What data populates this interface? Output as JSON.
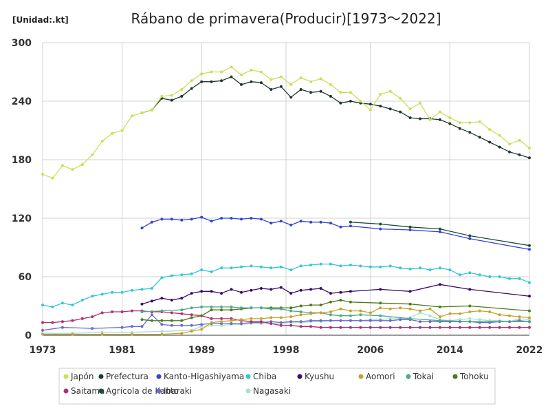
{
  "chart_data": {
    "type": "line",
    "title": "Rábano de primavera(Producir)[1973～2022]",
    "unit_label": "[Unidad:.kt]",
    "xlim": [
      1973,
      2022
    ],
    "ylim": [
      0,
      300
    ],
    "x_ticks": [
      "1973",
      "1981",
      "1989",
      "1998",
      "2006",
      "2014",
      "2022"
    ],
    "x_tick_values": [
      1973,
      1981,
      1989,
      1997.5,
      2006,
      2014,
      2022
    ],
    "y_ticks": [
      0,
      60,
      120,
      180,
      240,
      300
    ],
    "grid": true,
    "legend_position": "bottom",
    "series": [
      {
        "name": "Japón",
        "color": "#c8e05a",
        "x": [
          1973,
          1974,
          1975,
          1976,
          1977,
          1978,
          1979,
          1980,
          1981,
          1982,
          1983,
          1984,
          1985,
          1986,
          1987,
          1988,
          1989,
          1990,
          1991,
          1992,
          1993,
          1994,
          1995,
          1996,
          1997,
          1998,
          1999,
          2000,
          2001,
          2002,
          2003,
          2004,
          2005,
          2006,
          2007,
          2008,
          2009,
          2010,
          2011,
          2012,
          2013,
          2014,
          2015,
          2016,
          2017,
          2018,
          2019,
          2020,
          2021,
          2022
        ],
        "y": [
          165,
          161,
          174,
          170,
          175,
          185,
          199,
          207,
          210,
          225,
          228,
          231,
          245,
          246,
          252,
          261,
          268,
          270,
          270,
          275,
          267,
          272,
          270,
          262,
          265,
          257,
          264,
          260,
          263,
          257,
          249,
          249,
          240,
          231,
          247,
          250,
          243,
          232,
          238,
          221,
          229,
          223,
          218,
          218,
          219,
          211,
          205,
          196,
          200,
          192
        ]
      },
      {
        "name": "Prefectura",
        "color": "#1e3a2e",
        "x": [
          1983,
          1984,
          1985,
          1986,
          1987,
          1988,
          1989,
          1990,
          1991,
          1992,
          1993,
          1994,
          1995,
          1996,
          1997,
          1998,
          1999,
          2000,
          2001,
          2002,
          2003,
          2004,
          2005,
          2006,
          2007,
          2008,
          2009,
          2010,
          2011,
          2012,
          2013,
          2014,
          2015,
          2016,
          2017,
          2018,
          2019,
          2020,
          2021,
          2022
        ],
        "y": [
          228,
          231,
          243,
          241,
          245,
          253,
          260,
          260,
          261,
          265,
          257,
          260,
          259,
          252,
          255,
          244,
          252,
          249,
          250,
          245,
          238,
          240,
          238,
          237,
          235,
          232,
          229,
          223,
          222,
          222,
          221,
          217,
          212,
          208,
          203,
          198,
          193,
          188,
          185,
          182
        ]
      },
      {
        "name": "Kanto-Higashiyama",
        "color": "#3344cc",
        "x": [
          1983,
          1984,
          1985,
          1986,
          1987,
          1988,
          1989,
          1990,
          1991,
          1992,
          1993,
          1994,
          1995,
          1996,
          1997,
          1998,
          1999,
          2000,
          2001,
          2002,
          2003,
          2004,
          2007,
          2010,
          2013,
          2016,
          2022
        ],
        "y": [
          110,
          116,
          119,
          119,
          118,
          119,
          121,
          117,
          120,
          120,
          119,
          120,
          119,
          115,
          117,
          113,
          117,
          116,
          116,
          115,
          111,
          112,
          109,
          108,
          106,
          99,
          88
        ]
      },
      {
        "name": "Chiba",
        "color": "#33c7d6",
        "x": [
          1973,
          1974,
          1975,
          1976,
          1977,
          1978,
          1979,
          1980,
          1981,
          1982,
          1983,
          1984,
          1985,
          1986,
          1987,
          1988,
          1989,
          1990,
          1991,
          1992,
          1993,
          1994,
          1995,
          1996,
          1997,
          1998,
          1999,
          2000,
          2001,
          2002,
          2003,
          2004,
          2005,
          2006,
          2007,
          2008,
          2009,
          2010,
          2011,
          2012,
          2013,
          2014,
          2015,
          2016,
          2017,
          2018,
          2019,
          2020,
          2021,
          2022
        ],
        "y": [
          31,
          29,
          33,
          31,
          36,
          40,
          42,
          44,
          44,
          46,
          47,
          48,
          59,
          61,
          62,
          63,
          67,
          65,
          69,
          69,
          70,
          71,
          70,
          69,
          70,
          67,
          71,
          72,
          73,
          73,
          71,
          72,
          71,
          70,
          70,
          71,
          69,
          68,
          69,
          67,
          69,
          67,
          62,
          64,
          62,
          60,
          60,
          58,
          58,
          54
        ]
      },
      {
        "name": "Kyushu",
        "color": "#3a0a6a",
        "x": [
          1983,
          1984,
          1985,
          1986,
          1987,
          1988,
          1989,
          1990,
          1991,
          1992,
          1993,
          1994,
          1995,
          1996,
          1997,
          1998,
          1999,
          2000,
          2001,
          2002,
          2003,
          2004,
          2007,
          2010,
          2013,
          2016,
          2022
        ],
        "y": [
          32,
          35,
          38,
          36,
          38,
          43,
          45,
          45,
          43,
          47,
          44,
          46,
          48,
          47,
          49,
          43,
          46,
          47,
          48,
          43,
          44,
          45,
          47,
          45,
          52,
          47,
          40
        ]
      },
      {
        "name": "Aomori",
        "color": "#c9a227",
        "x": [
          1973,
          1976,
          1979,
          1982,
          1985,
          1987,
          1988,
          1989,
          1990,
          1991,
          1992,
          1993,
          1994,
          1995,
          1996,
          1997,
          1998,
          1999,
          2000,
          2001,
          2002,
          2003,
          2004,
          2005,
          2006,
          2007,
          2008,
          2009,
          2010,
          2011,
          2012,
          2013,
          2014,
          2015,
          2016,
          2017,
          2018,
          2019,
          2020,
          2021,
          2022
        ],
        "y": [
          1,
          1,
          1,
          1,
          1,
          2,
          4,
          6,
          13,
          14,
          15,
          16,
          17,
          17,
          18,
          18,
          19,
          21,
          22,
          23,
          24,
          27,
          25,
          25,
          23,
          28,
          27,
          28,
          27,
          25,
          27,
          19,
          22,
          22,
          24,
          25,
          24,
          21,
          20,
          19,
          18
        ]
      },
      {
        "name": "Tokai",
        "color": "#4fa88a",
        "x": [
          1983,
          1985,
          1987,
          1988,
          1989,
          1990,
          1991,
          1992,
          1993,
          1994,
          1995,
          1996,
          1997,
          1998,
          1999,
          2000,
          2001,
          2002,
          2003,
          2004,
          2005,
          2007,
          2010,
          2013,
          2016,
          2022
        ],
        "y": [
          24,
          25,
          26,
          28,
          29,
          29,
          29,
          29,
          28,
          28,
          28,
          27,
          27,
          25,
          24,
          23,
          23,
          21,
          20,
          20,
          21,
          20,
          17,
          15,
          14,
          14
        ]
      },
      {
        "name": "Tohoku",
        "color": "#4d7a1a",
        "x": [
          1983,
          1984,
          1985,
          1986,
          1987,
          1988,
          1989,
          1990,
          1991,
          1992,
          1993,
          1994,
          1995,
          1996,
          1997,
          1998,
          1999,
          2000,
          2001,
          2002,
          2003,
          2004,
          2007,
          2010,
          2013,
          2016,
          2022
        ],
        "y": [
          16,
          15,
          15,
          15,
          15,
          18,
          20,
          26,
          26,
          26,
          27,
          28,
          28,
          28,
          28,
          28,
          30,
          31,
          31,
          34,
          36,
          34,
          33,
          32,
          29,
          30,
          25
        ]
      },
      {
        "name": "Saitama",
        "color": "#b03070",
        "x": [
          1973,
          1974,
          1975,
          1976,
          1977,
          1978,
          1979,
          1980,
          1981,
          1982,
          1983,
          1984,
          1985,
          1986,
          1987,
          1988,
          1989,
          1990,
          1991,
          1992,
          1993,
          1994,
          1995,
          1996,
          1997,
          1998,
          1999,
          2000,
          2001,
          2002,
          2003,
          2004,
          2005,
          2006,
          2007,
          2008,
          2009,
          2010,
          2011,
          2012,
          2013,
          2014,
          2015,
          2016,
          2017,
          2018,
          2019,
          2020,
          2021,
          2022
        ],
        "y": [
          13,
          13,
          14,
          15,
          17,
          19,
          23,
          24,
          24,
          25,
          25,
          24,
          24,
          23,
          22,
          21,
          20,
          17,
          17,
          17,
          15,
          14,
          14,
          12,
          10,
          10,
          9,
          9,
          8,
          8,
          8,
          8,
          8,
          8,
          8,
          8,
          8,
          8,
          8,
          8,
          8,
          8,
          8,
          8,
          8,
          8,
          8,
          8,
          8,
          8
        ]
      },
      {
        "name": "Agrícola de Kanto",
        "color": "#1e4a3a",
        "x": [
          2004,
          2007,
          2010,
          2013,
          2016,
          2022
        ],
        "y": [
          116,
          114,
          111,
          109,
          102,
          92
        ]
      },
      {
        "name": "Ibaraki",
        "color": "#6a6acc",
        "x": [
          1973,
          1975,
          1978,
          1981,
          1982,
          1983,
          1984,
          1985,
          1986,
          1987,
          1988,
          1989,
          1990,
          1991,
          1992,
          1993,
          1994,
          1995,
          1996,
          1997,
          1998,
          1999,
          2000,
          2001,
          2002,
          2003,
          2004,
          2005,
          2006,
          2007,
          2008,
          2009,
          2010,
          2011,
          2012,
          2013,
          2014,
          2015,
          2016,
          2017,
          2018,
          2019,
          2020,
          2021,
          2022
        ],
        "y": [
          5,
          8,
          7,
          8,
          9,
          9,
          21,
          11,
          10,
          10,
          10,
          11,
          12,
          12,
          12,
          12,
          13,
          13,
          14,
          13,
          14,
          14,
          15,
          15,
          15,
          15,
          15,
          15,
          15,
          15,
          15,
          16,
          16,
          14,
          14,
          14,
          14,
          14,
          14,
          13,
          13,
          14,
          14,
          15,
          14
        ]
      },
      {
        "name": "Nagasaki",
        "color": "#a8e0d0",
        "x": [
          1973,
          1976,
          1979,
          1982,
          1985,
          1988,
          1989,
          1990,
          1991,
          1992,
          1993,
          1994,
          1995,
          1996,
          1997,
          1998,
          1999,
          2000,
          2001,
          2002,
          2003,
          2004,
          2005,
          2006,
          2007,
          2008,
          2009,
          2010,
          2011,
          2012,
          2013,
          2014,
          2015,
          2016,
          2017,
          2018,
          2019,
          2020,
          2021,
          2022
        ],
        "y": [
          2,
          2,
          3,
          3,
          4,
          5,
          9,
          10,
          10,
          11,
          11,
          12,
          12,
          12,
          12,
          13,
          13,
          14,
          14,
          15,
          15,
          15,
          15,
          16,
          16,
          17,
          17,
          18,
          23,
          20,
          16,
          15,
          16,
          17,
          16,
          15,
          15,
          14,
          17,
          16
        ]
      }
    ]
  }
}
